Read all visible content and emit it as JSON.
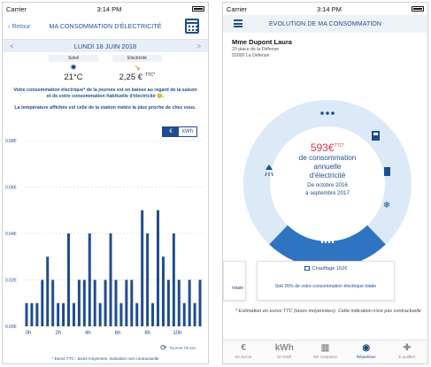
{
  "left": {
    "status": {
      "carrier": "Carrier",
      "time": "3:14 PM"
    },
    "nav": {
      "back_label": "Retour",
      "title": "MA CONSOMMATION D'ÉLECTRICITÉ"
    },
    "date_bar": {
      "date": "LUNDI 18 JUIN 2018",
      "prev": "<",
      "next": ">"
    },
    "weather": {
      "sun_label": "Soleil",
      "temperature": "21°C",
      "elec_label": "Electricité",
      "price": "2,25 €",
      "price_sup": "TTC*"
    },
    "message_1": "Votre consommation électrique* de la journée est en baisse au regard de la saison et de votre consommation habituelle d'électricité 😊.",
    "message_2": "La température affichée est celle de la station météo la plus proche de chez vous.",
    "toggle": {
      "euro": "€",
      "kwh": "kWh"
    },
    "rotate_label": "Tourner l'écran",
    "footnote": "* Euros TTC : taxes moyennes, indication non contractuelle",
    "chart_data": {
      "type": "bar",
      "y_ticks": [
        "0.00€",
        "0.02€",
        "0.04€",
        "0.06€",
        "0.08€"
      ],
      "ylim": [
        0,
        0.08
      ],
      "x_ticks": [
        "0h",
        "2h",
        "4h",
        "6h",
        "8h",
        "10h"
      ],
      "color": "#1e4c8f",
      "values": [
        0.01,
        0.01,
        0.01,
        0.02,
        0.03,
        0.02,
        0.01,
        0.01,
        0.04,
        0.01,
        0.02,
        0.02,
        0.04,
        0.02,
        0.01,
        0.02,
        0.04,
        0.02,
        0.01,
        0.02,
        0.02,
        0.01,
        0.05,
        0.04,
        0.01,
        0.05,
        0.03,
        0.02,
        0.04,
        0.02,
        0.01,
        0.02,
        0.01,
        0.02
      ]
    }
  },
  "right": {
    "status": {
      "carrier": "Carrier",
      "time": "3:14 PM"
    },
    "nav": {
      "title": "EVOLUTION DE MA CONSOMMATION"
    },
    "customer": {
      "name": "Mme Dupont Laura",
      "address_1": "20 place de la Défense",
      "address_2": "92000 La Défense"
    },
    "donut": {
      "amount": "593€",
      "amount_sup": "TTC*",
      "line_1": "de consommation",
      "line_2": "annuelle",
      "line_3": "d'électricité",
      "period_1": "De octobre 2016",
      "period_2": "à septembre 2017",
      "colors": {
        "ring": "#dce9f6",
        "highlight": "#2f74c0",
        "dark": "#1e4c8f"
      },
      "icons": [
        "dots-icon",
        "fridge-icon",
        "washing-machine-icon",
        "snowflake-icon",
        "radiator-icon",
        "shower-icon"
      ]
    },
    "cards": {
      "left_text": "totale",
      "main_title": "Chauffage 162€",
      "main_text": "Soit 26% de votre consommation électrique totale"
    },
    "note": "* Estimation en euros TTC (taxes moyennées). Cette indication n'est pas contractuelle",
    "tabs": [
      {
        "icon": "€",
        "label": "En euros"
      },
      {
        "icon": "kWh",
        "label": "En kWh"
      },
      {
        "icon": "▥",
        "label": "Me comparer"
      },
      {
        "icon": "◉",
        "label": "Répartition"
      },
      {
        "icon": "✚",
        "label": "É quilibre"
      }
    ]
  }
}
